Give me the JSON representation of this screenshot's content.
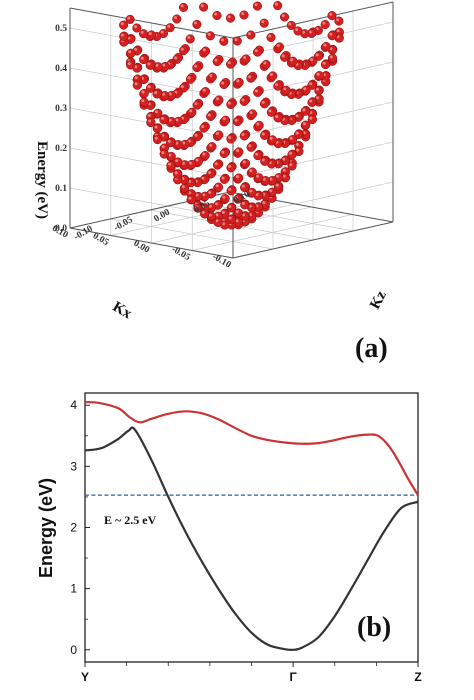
{
  "chart_data": [
    {
      "type": "scatter",
      "panel_label": "(a)",
      "zlabel": "Energy (eV)",
      "xlabel": "Kx",
      "ylabel": "Kz",
      "ztick_labels": [
        "0.0",
        "0.1",
        "0.2",
        "0.3",
        "0.4",
        "0.5"
      ],
      "xtick_labels": [
        "-0.10",
        "-0.05",
        "0.00",
        "0.05",
        "0.10"
      ],
      "ytick_labels": [
        "-0.10",
        "-0.05",
        "0.00",
        "0.05",
        "0.10"
      ],
      "zlim": [
        0,
        0.55
      ],
      "xlim": [
        -0.1,
        0.1
      ],
      "ylim": [
        -0.1,
        0.1
      ],
      "surface": "paraboloid E = a (Kx^2 + Kz^2), E_max ~ 0.52 eV at the rim, sampled on a grid of points",
      "marker_color": "#d42020",
      "grid": true
    },
    {
      "type": "line",
      "panel_label": "(b)",
      "ylabel": "Energy (eV)",
      "x_ticks": [
        "Y",
        "Γ",
        "Z"
      ],
      "x_tick_positions": [
        0,
        0.625,
        1
      ],
      "xlim": [
        0,
        1
      ],
      "ylim": [
        -0.2,
        4.2
      ],
      "ytick_labels": [
        "0",
        "1",
        "2",
        "3",
        "4"
      ],
      "annotation": "E ~ 2.5 eV",
      "series": [
        {
          "color": "#cc3333",
          "x": [
            0,
            0.04,
            0.1,
            0.135,
            0.165,
            0.2,
            0.25,
            0.3,
            0.35,
            0.4,
            0.45,
            0.5,
            0.55,
            0.6,
            0.65,
            0.7,
            0.75,
            0.8,
            0.85,
            0.88,
            0.91,
            0.94,
            0.97,
            1.0
          ],
          "y": [
            4.05,
            4.04,
            3.95,
            3.8,
            3.72,
            3.78,
            3.86,
            3.9,
            3.87,
            3.77,
            3.63,
            3.5,
            3.43,
            3.39,
            3.37,
            3.38,
            3.43,
            3.49,
            3.52,
            3.5,
            3.35,
            3.1,
            2.8,
            2.53
          ]
        },
        {
          "color": "#333333",
          "x": [
            0,
            0.05,
            0.1,
            0.13,
            0.15,
            0.2,
            0.25,
            0.3,
            0.35,
            0.4,
            0.45,
            0.5,
            0.55,
            0.6,
            0.625,
            0.65,
            0.7,
            0.75,
            0.8,
            0.85,
            0.9,
            0.95,
            1.0
          ],
          "y": [
            3.26,
            3.3,
            3.45,
            3.58,
            3.6,
            3.1,
            2.5,
            1.95,
            1.45,
            1.0,
            0.6,
            0.28,
            0.08,
            0.01,
            0.0,
            0.03,
            0.2,
            0.55,
            1.0,
            1.48,
            1.95,
            2.32,
            2.42
          ]
        },
        {
          "color": "#1f5fa8",
          "style": "dashed",
          "x": [
            0,
            1
          ],
          "y": [
            2.53,
            2.53
          ]
        }
      ]
    }
  ]
}
